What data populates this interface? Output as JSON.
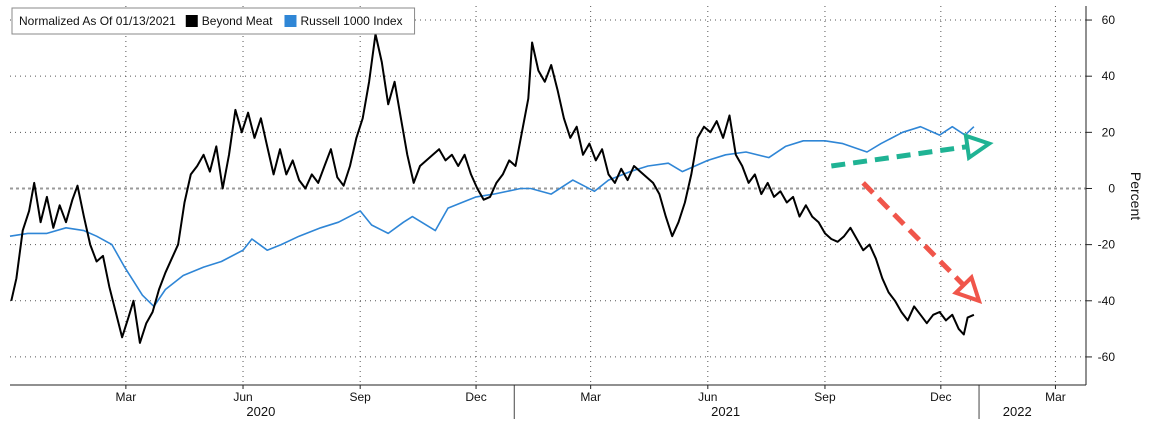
{
  "chart_data": {
    "type": "line",
    "title": "",
    "xlabel": "",
    "ylabel": "Percent",
    "ylim": [
      -70,
      65
    ],
    "yticks": [
      60,
      40,
      20,
      0,
      -20,
      -40,
      -60
    ],
    "xlim": [
      "2019-12-01",
      "2022-03-25"
    ],
    "month_ticks": [
      {
        "label": "Mar",
        "date": "2020-03-01"
      },
      {
        "label": "Jun",
        "date": "2020-06-01"
      },
      {
        "label": "Sep",
        "date": "2020-09-01"
      },
      {
        "label": "Dec",
        "date": "2020-12-01"
      },
      {
        "label": "Mar",
        "date": "2021-03-01"
      },
      {
        "label": "Jun",
        "date": "2021-06-01"
      },
      {
        "label": "Sep",
        "date": "2021-09-01"
      },
      {
        "label": "Dec",
        "date": "2021-12-01"
      },
      {
        "label": "Mar",
        "date": "2022-03-01"
      }
    ],
    "year_labels": [
      {
        "label": "2020",
        "date": "2020-06-15"
      },
      {
        "label": "2021",
        "date": "2021-06-15"
      },
      {
        "label": "2022",
        "date": "2022-01-30"
      }
    ],
    "year_separators": [
      "2020-12-31",
      "2021-12-31"
    ],
    "legend": {
      "placement": "top-left",
      "header": "Normalized As Of 01/13/2021",
      "items": [
        {
          "name": "Beyond Meat",
          "color": "#000000"
        },
        {
          "name": "Russell 1000 Index",
          "color": "#2f86d6"
        }
      ]
    },
    "grid": "dotted",
    "zero_line": true,
    "series": [
      {
        "name": "Beyond Meat",
        "color": "#000000",
        "points": [
          [
            "2019-12-02",
            -40
          ],
          [
            "2019-12-06",
            -32
          ],
          [
            "2019-12-11",
            -15
          ],
          [
            "2019-12-16",
            -8
          ],
          [
            "2019-12-20",
            2
          ],
          [
            "2019-12-25",
            -12
          ],
          [
            "2019-12-30",
            -3
          ],
          [
            "2020-01-04",
            -14
          ],
          [
            "2020-01-09",
            -6
          ],
          [
            "2020-01-14",
            -12
          ],
          [
            "2020-01-19",
            -4
          ],
          [
            "2020-01-23",
            1
          ],
          [
            "2020-01-28",
            -10
          ],
          [
            "2020-02-02",
            -20
          ],
          [
            "2020-02-07",
            -26
          ],
          [
            "2020-02-12",
            -24
          ],
          [
            "2020-02-17",
            -35
          ],
          [
            "2020-02-22",
            -44
          ],
          [
            "2020-02-27",
            -53
          ],
          [
            "2020-03-03",
            -46
          ],
          [
            "2020-03-07",
            -40
          ],
          [
            "2020-03-12",
            -55
          ],
          [
            "2020-03-17",
            -48
          ],
          [
            "2020-03-22",
            -44
          ],
          [
            "2020-03-27",
            -36
          ],
          [
            "2020-04-01",
            -30
          ],
          [
            "2020-04-06",
            -25
          ],
          [
            "2020-04-11",
            -20
          ],
          [
            "2020-04-16",
            -5
          ],
          [
            "2020-04-21",
            5
          ],
          [
            "2020-04-26",
            8
          ],
          [
            "2020-05-01",
            12
          ],
          [
            "2020-05-06",
            6
          ],
          [
            "2020-05-11",
            15
          ],
          [
            "2020-05-16",
            0
          ],
          [
            "2020-05-21",
            12
          ],
          [
            "2020-05-26",
            28
          ],
          [
            "2020-05-31",
            20
          ],
          [
            "2020-06-05",
            27
          ],
          [
            "2020-06-10",
            18
          ],
          [
            "2020-06-15",
            25
          ],
          [
            "2020-06-20",
            15
          ],
          [
            "2020-06-25",
            5
          ],
          [
            "2020-06-30",
            14
          ],
          [
            "2020-07-05",
            5
          ],
          [
            "2020-07-10",
            10
          ],
          [
            "2020-07-15",
            3
          ],
          [
            "2020-07-20",
            0
          ],
          [
            "2020-07-25",
            5
          ],
          [
            "2020-07-30",
            2
          ],
          [
            "2020-08-04",
            8
          ],
          [
            "2020-08-09",
            14
          ],
          [
            "2020-08-14",
            4
          ],
          [
            "2020-08-19",
            1
          ],
          [
            "2020-08-24",
            8
          ],
          [
            "2020-08-29",
            18
          ],
          [
            "2020-09-03",
            25
          ],
          [
            "2020-09-08",
            38
          ],
          [
            "2020-09-13",
            55
          ],
          [
            "2020-09-18",
            45
          ],
          [
            "2020-09-23",
            30
          ],
          [
            "2020-09-28",
            38
          ],
          [
            "2020-10-03",
            25
          ],
          [
            "2020-10-08",
            12
          ],
          [
            "2020-10-13",
            2
          ],
          [
            "2020-10-18",
            8
          ],
          [
            "2020-10-23",
            10
          ],
          [
            "2020-10-28",
            12
          ],
          [
            "2020-11-02",
            14
          ],
          [
            "2020-11-07",
            10
          ],
          [
            "2020-11-12",
            12
          ],
          [
            "2020-11-17",
            8
          ],
          [
            "2020-11-22",
            12
          ],
          [
            "2020-11-27",
            5
          ],
          [
            "2020-12-02",
            0
          ],
          [
            "2020-12-07",
            -4
          ],
          [
            "2020-12-12",
            -3
          ],
          [
            "2020-12-17",
            2
          ],
          [
            "2020-12-22",
            5
          ],
          [
            "2020-12-27",
            10
          ],
          [
            "2021-01-01",
            8
          ],
          [
            "2021-01-06",
            20
          ],
          [
            "2021-01-11",
            32
          ],
          [
            "2021-01-14",
            52
          ],
          [
            "2021-01-19",
            42
          ],
          [
            "2021-01-24",
            38
          ],
          [
            "2021-01-29",
            44
          ],
          [
            "2021-02-03",
            35
          ],
          [
            "2021-02-08",
            25
          ],
          [
            "2021-02-13",
            18
          ],
          [
            "2021-02-18",
            22
          ],
          [
            "2021-02-23",
            12
          ],
          [
            "2021-02-28",
            16
          ],
          [
            "2021-03-05",
            10
          ],
          [
            "2021-03-10",
            14
          ],
          [
            "2021-03-15",
            5
          ],
          [
            "2021-03-20",
            2
          ],
          [
            "2021-03-25",
            7
          ],
          [
            "2021-03-30",
            3
          ],
          [
            "2021-04-04",
            8
          ],
          [
            "2021-04-09",
            6
          ],
          [
            "2021-04-14",
            4
          ],
          [
            "2021-04-19",
            2
          ],
          [
            "2021-04-24",
            -2
          ],
          [
            "2021-04-29",
            -10
          ],
          [
            "2021-05-04",
            -17
          ],
          [
            "2021-05-09",
            -12
          ],
          [
            "2021-05-14",
            -5
          ],
          [
            "2021-05-19",
            5
          ],
          [
            "2021-05-24",
            18
          ],
          [
            "2021-05-29",
            22
          ],
          [
            "2021-06-03",
            20
          ],
          [
            "2021-06-08",
            24
          ],
          [
            "2021-06-13",
            18
          ],
          [
            "2021-06-18",
            26
          ],
          [
            "2021-06-23",
            12
          ],
          [
            "2021-06-28",
            8
          ],
          [
            "2021-07-03",
            2
          ],
          [
            "2021-07-08",
            5
          ],
          [
            "2021-07-13",
            -2
          ],
          [
            "2021-07-18",
            2
          ],
          [
            "2021-07-23",
            -3
          ],
          [
            "2021-07-28",
            -1
          ],
          [
            "2021-08-02",
            -5
          ],
          [
            "2021-08-07",
            -3
          ],
          [
            "2021-08-12",
            -10
          ],
          [
            "2021-08-17",
            -6
          ],
          [
            "2021-08-22",
            -10
          ],
          [
            "2021-08-27",
            -12
          ],
          [
            "2021-09-01",
            -16
          ],
          [
            "2021-09-06",
            -18
          ],
          [
            "2021-09-11",
            -19
          ],
          [
            "2021-09-16",
            -17
          ],
          [
            "2021-09-21",
            -14
          ],
          [
            "2021-09-26",
            -18
          ],
          [
            "2021-10-01",
            -22
          ],
          [
            "2021-10-06",
            -20
          ],
          [
            "2021-10-11",
            -25
          ],
          [
            "2021-10-16",
            -32
          ],
          [
            "2021-10-21",
            -37
          ],
          [
            "2021-10-26",
            -40
          ],
          [
            "2021-10-31",
            -44
          ],
          [
            "2021-11-05",
            -47
          ],
          [
            "2021-11-10",
            -42
          ],
          [
            "2021-11-15",
            -45
          ],
          [
            "2021-11-20",
            -48
          ],
          [
            "2021-11-25",
            -45
          ],
          [
            "2021-11-30",
            -44
          ],
          [
            "2021-12-05",
            -47
          ],
          [
            "2021-12-10",
            -45
          ],
          [
            "2021-12-15",
            -50
          ],
          [
            "2021-12-19",
            -52
          ],
          [
            "2021-12-22",
            -46
          ],
          [
            "2021-12-27",
            -45
          ]
        ]
      },
      {
        "name": "Russell 1000 Index",
        "color": "#2f86d6",
        "points": [
          [
            "2019-12-01",
            -17
          ],
          [
            "2019-12-15",
            -16
          ],
          [
            "2019-12-30",
            -16
          ],
          [
            "2020-01-14",
            -14
          ],
          [
            "2020-01-28",
            -15
          ],
          [
            "2020-02-07",
            -17
          ],
          [
            "2020-02-19",
            -20
          ],
          [
            "2020-02-29",
            -28
          ],
          [
            "2020-03-07",
            -33
          ],
          [
            "2020-03-14",
            -38
          ],
          [
            "2020-03-23",
            -42
          ],
          [
            "2020-04-01",
            -36
          ],
          [
            "2020-04-15",
            -31
          ],
          [
            "2020-05-01",
            -28
          ],
          [
            "2020-05-15",
            -26
          ],
          [
            "2020-06-01",
            -22
          ],
          [
            "2020-06-08",
            -18
          ],
          [
            "2020-06-20",
            -22
          ],
          [
            "2020-07-01",
            -20
          ],
          [
            "2020-07-15",
            -17
          ],
          [
            "2020-08-01",
            -14
          ],
          [
            "2020-08-15",
            -12
          ],
          [
            "2020-09-01",
            -8
          ],
          [
            "2020-09-10",
            -13
          ],
          [
            "2020-09-23",
            -16
          ],
          [
            "2020-10-05",
            -12
          ],
          [
            "2020-10-12",
            -10
          ],
          [
            "2020-10-30",
            -15
          ],
          [
            "2020-11-09",
            -7
          ],
          [
            "2020-11-20",
            -5
          ],
          [
            "2020-12-01",
            -3
          ],
          [
            "2020-12-15",
            -2
          ],
          [
            "2021-01-05",
            0
          ],
          [
            "2021-01-13",
            0
          ],
          [
            "2021-01-29",
            -2
          ],
          [
            "2021-02-15",
            3
          ],
          [
            "2021-03-04",
            -1
          ],
          [
            "2021-03-15",
            3
          ],
          [
            "2021-04-01",
            6
          ],
          [
            "2021-04-15",
            8
          ],
          [
            "2021-05-01",
            9
          ],
          [
            "2021-05-12",
            6
          ],
          [
            "2021-06-01",
            10
          ],
          [
            "2021-06-15",
            12
          ],
          [
            "2021-07-01",
            13
          ],
          [
            "2021-07-19",
            11
          ],
          [
            "2021-08-01",
            15
          ],
          [
            "2021-08-15",
            17
          ],
          [
            "2021-09-01",
            17
          ],
          [
            "2021-09-15",
            16
          ],
          [
            "2021-10-04",
            13
          ],
          [
            "2021-10-15",
            16
          ],
          [
            "2021-11-01",
            20
          ],
          [
            "2021-11-15",
            22
          ],
          [
            "2021-11-30",
            19
          ],
          [
            "2021-12-10",
            22
          ],
          [
            "2021-12-20",
            19
          ],
          [
            "2021-12-27",
            22
          ]
        ]
      }
    ],
    "annotations": [
      {
        "type": "arrow",
        "color": "#1fb394",
        "style": "dashed",
        "from": [
          "2021-09-06",
          8
        ],
        "to": [
          "2022-01-08",
          16
        ]
      },
      {
        "type": "arrow",
        "color": "#f0554a",
        "style": "dashed",
        "from": [
          "2021-10-01",
          2
        ],
        "to": [
          "2021-12-31",
          -40
        ]
      }
    ]
  }
}
